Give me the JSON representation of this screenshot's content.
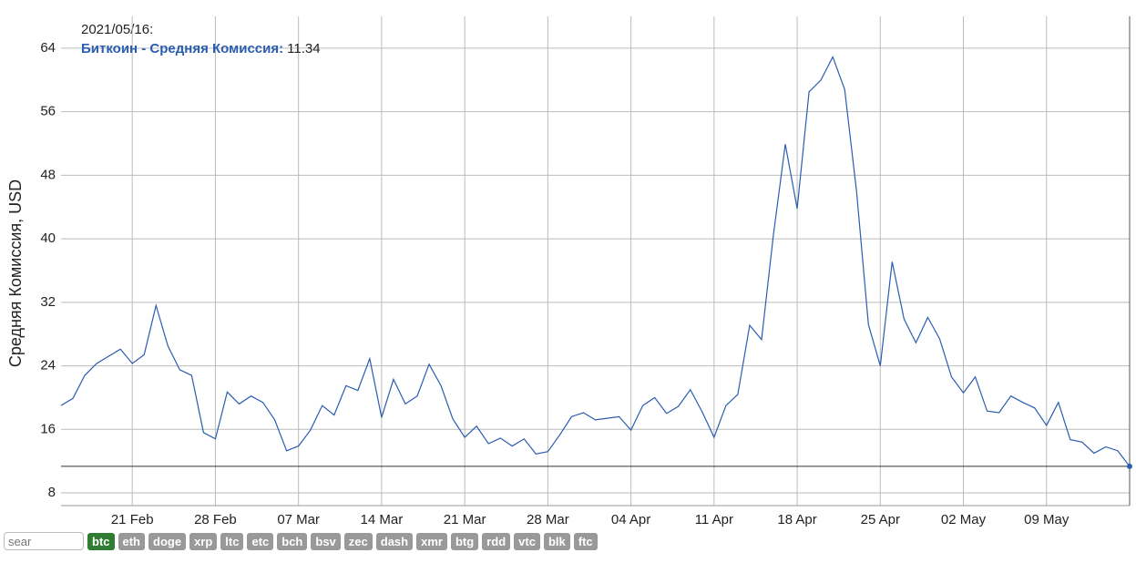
{
  "chart_data": {
    "type": "line",
    "y_label": "Средняя Комиссия, USD",
    "color": "#2a5db0",
    "grid": true,
    "x": [
      "2021-02-15",
      "2021-02-16",
      "2021-02-17",
      "2021-02-18",
      "2021-02-19",
      "2021-02-20",
      "2021-02-21",
      "2021-02-22",
      "2021-02-23",
      "2021-02-24",
      "2021-02-25",
      "2021-02-26",
      "2021-02-27",
      "2021-02-28",
      "2021-03-01",
      "2021-03-02",
      "2021-03-03",
      "2021-03-04",
      "2021-03-05",
      "2021-03-06",
      "2021-03-07",
      "2021-03-08",
      "2021-03-09",
      "2021-03-10",
      "2021-03-11",
      "2021-03-12",
      "2021-03-13",
      "2021-03-14",
      "2021-03-15",
      "2021-03-16",
      "2021-03-17",
      "2021-03-18",
      "2021-03-19",
      "2021-03-20",
      "2021-03-21",
      "2021-03-22",
      "2021-03-23",
      "2021-03-24",
      "2021-03-25",
      "2021-03-26",
      "2021-03-27",
      "2021-03-28",
      "2021-03-29",
      "2021-03-30",
      "2021-03-31",
      "2021-04-01",
      "2021-04-02",
      "2021-04-03",
      "2021-04-04",
      "2021-04-05",
      "2021-04-06",
      "2021-04-07",
      "2021-04-08",
      "2021-04-09",
      "2021-04-10",
      "2021-04-11",
      "2021-04-12",
      "2021-04-13",
      "2021-04-14",
      "2021-04-15",
      "2021-04-16",
      "2021-04-17",
      "2021-04-18",
      "2021-04-19",
      "2021-04-20",
      "2021-04-21",
      "2021-04-22",
      "2021-04-23",
      "2021-04-24",
      "2021-04-25",
      "2021-04-26",
      "2021-04-27",
      "2021-04-28",
      "2021-04-29",
      "2021-04-30",
      "2021-05-01",
      "2021-05-02",
      "2021-05-03",
      "2021-05-04",
      "2021-05-05",
      "2021-05-06",
      "2021-05-07",
      "2021-05-08",
      "2021-05-09",
      "2021-05-10",
      "2021-05-11",
      "2021-05-12",
      "2021-05-13",
      "2021-05-14",
      "2021-05-15",
      "2021-05-16"
    ],
    "values": [
      19.0,
      19.9,
      22.8,
      24.3,
      25.2,
      26.1,
      24.3,
      25.4,
      31.6,
      26.5,
      23.5,
      22.8,
      15.6,
      14.8,
      20.7,
      19.2,
      20.2,
      19.4,
      17.2,
      13.3,
      13.9,
      15.9,
      19.0,
      17.8,
      21.5,
      20.9,
      24.9,
      17.5,
      22.3,
      19.2,
      20.2,
      24.2,
      21.5,
      17.3,
      15.0,
      16.4,
      14.2,
      14.9,
      13.9,
      14.8,
      12.9,
      13.2,
      15.3,
      17.6,
      18.1,
      17.2,
      17.4,
      17.6,
      15.9,
      19.0,
      20.0,
      18.0,
      18.9,
      21.0,
      18.2,
      15.0,
      19.0,
      20.4,
      29.1,
      27.3,
      40.5,
      51.9,
      43.8,
      58.5,
      60.0,
      62.9,
      58.8,
      46.0,
      29.2,
      24.0,
      37.1,
      29.9,
      26.9,
      30.1,
      27.4,
      22.6,
      20.6,
      22.6,
      18.3,
      18.1,
      20.2,
      19.4,
      18.7,
      16.5,
      19.4,
      14.7,
      14.4,
      13.0,
      13.8,
      13.3,
      11.34
    ],
    "xlim": [
      "2021-02-15",
      "2021-05-16"
    ],
    "xticks": [
      {
        "value": "2021-02-21",
        "label": "21 Feb"
      },
      {
        "value": "2021-02-28",
        "label": "28 Feb"
      },
      {
        "value": "2021-03-07",
        "label": "07 Mar"
      },
      {
        "value": "2021-03-14",
        "label": "14 Mar"
      },
      {
        "value": "2021-03-21",
        "label": "21 Mar"
      },
      {
        "value": "2021-03-28",
        "label": "28 Mar"
      },
      {
        "value": "2021-04-04",
        "label": "04 Apr"
      },
      {
        "value": "2021-04-11",
        "label": "11 Apr"
      },
      {
        "value": "2021-04-18",
        "label": "18 Apr"
      },
      {
        "value": "2021-04-25",
        "label": "25 Apr"
      },
      {
        "value": "2021-05-02",
        "label": "02 May"
      },
      {
        "value": "2021-05-09",
        "label": "09 May"
      }
    ],
    "ylim": [
      6.4,
      68
    ],
    "yticks": [
      8,
      16,
      24,
      32,
      40,
      48,
      56,
      64
    ],
    "tooltip": {
      "date": "2021/05/16:",
      "label": "Биткоин - Средняя Комиссия:",
      "value": 11.34
    }
  },
  "controls": {
    "search_placeholder": "sear",
    "active": "btc",
    "coins": [
      "btc",
      "eth",
      "doge",
      "xrp",
      "ltc",
      "etc",
      "bch",
      "bsv",
      "zec",
      "dash",
      "xmr",
      "btg",
      "rdd",
      "vtc",
      "blk",
      "ftc"
    ]
  }
}
